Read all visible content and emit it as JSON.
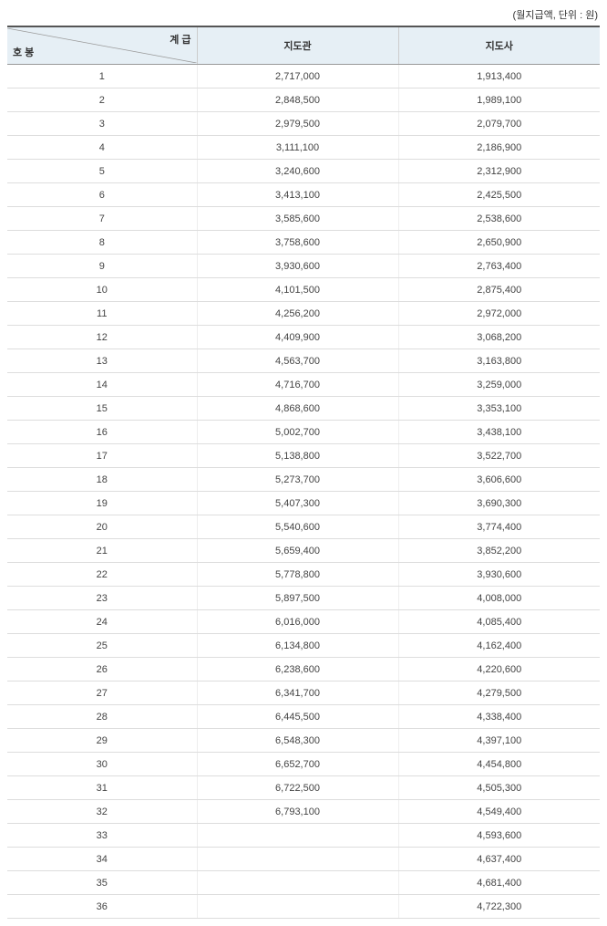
{
  "unit_note": "(월지급액, 단위 : 원)",
  "header": {
    "diag_top": "계 급",
    "diag_bottom": "호 봉",
    "col1": "지도관",
    "col2": "지도사"
  },
  "colors": {
    "header_bg": "#e6eff5",
    "border_strong": "#555555",
    "border_header_bottom": "#999999",
    "border_row": "#dddddd",
    "text": "#333333",
    "diag_line": "#999999"
  },
  "columns": [
    "호봉",
    "지도관",
    "지도사"
  ],
  "rows": [
    [
      "1",
      "2,717,000",
      "1,913,400"
    ],
    [
      "2",
      "2,848,500",
      "1,989,100"
    ],
    [
      "3",
      "2,979,500",
      "2,079,700"
    ],
    [
      "4",
      "3,111,100",
      "2,186,900"
    ],
    [
      "5",
      "3,240,600",
      "2,312,900"
    ],
    [
      "6",
      "3,413,100",
      "2,425,500"
    ],
    [
      "7",
      "3,585,600",
      "2,538,600"
    ],
    [
      "8",
      "3,758,600",
      "2,650,900"
    ],
    [
      "9",
      "3,930,600",
      "2,763,400"
    ],
    [
      "10",
      "4,101,500",
      "2,875,400"
    ],
    [
      "11",
      "4,256,200",
      "2,972,000"
    ],
    [
      "12",
      "4,409,900",
      "3,068,200"
    ],
    [
      "13",
      "4,563,700",
      "3,163,800"
    ],
    [
      "14",
      "4,716,700",
      "3,259,000"
    ],
    [
      "15",
      "4,868,600",
      "3,353,100"
    ],
    [
      "16",
      "5,002,700",
      "3,438,100"
    ],
    [
      "17",
      "5,138,800",
      "3,522,700"
    ],
    [
      "18",
      "5,273,700",
      "3,606,600"
    ],
    [
      "19",
      "5,407,300",
      "3,690,300"
    ],
    [
      "20",
      "5,540,600",
      "3,774,400"
    ],
    [
      "21",
      "5,659,400",
      "3,852,200"
    ],
    [
      "22",
      "5,778,800",
      "3,930,600"
    ],
    [
      "23",
      "5,897,500",
      "4,008,000"
    ],
    [
      "24",
      "6,016,000",
      "4,085,400"
    ],
    [
      "25",
      "6,134,800",
      "4,162,400"
    ],
    [
      "26",
      "6,238,600",
      "4,220,600"
    ],
    [
      "27",
      "6,341,700",
      "4,279,500"
    ],
    [
      "28",
      "6,445,500",
      "4,338,400"
    ],
    [
      "29",
      "6,548,300",
      "4,397,100"
    ],
    [
      "30",
      "6,652,700",
      "4,454,800"
    ],
    [
      "31",
      "6,722,500",
      "4,505,300"
    ],
    [
      "32",
      "6,793,100",
      "4,549,400"
    ],
    [
      "33",
      "",
      "4,593,600"
    ],
    [
      "34",
      "",
      "4,637,400"
    ],
    [
      "35",
      "",
      "4,681,400"
    ],
    [
      "36",
      "",
      "4,722,300"
    ]
  ]
}
